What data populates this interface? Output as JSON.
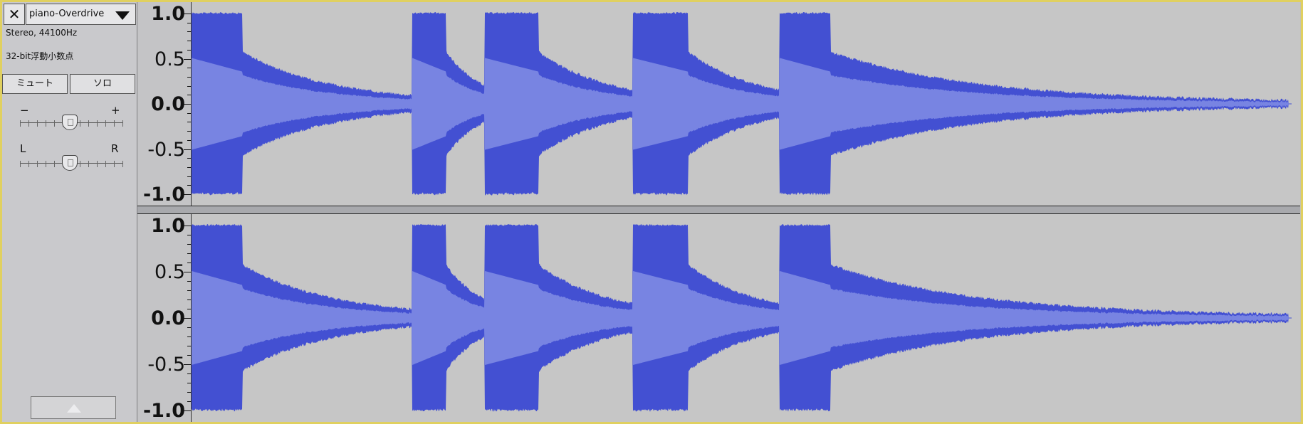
{
  "track": {
    "name": "piano-Overdrive",
    "format": "Stereo, 44100Hz",
    "bit_depth": "32-bit浮動小数点",
    "mute_label": "ミュート",
    "solo_label": "ソロ",
    "gain_minus": "−",
    "gain_plus": "+",
    "pan_left": "L",
    "pan_right": "R"
  },
  "ruler_labels": [
    "1.0",
    "0.5",
    "0.0",
    "-0.5",
    "-1.0"
  ],
  "colors": {
    "wave_peak": "#4350d2",
    "wave_rms": "#7884e2",
    "background": "#c6c6c6",
    "frame": "#e0d060"
  },
  "icons": {
    "close": "close-icon",
    "menu": "dropdown-arrow-icon",
    "collapse": "collapse-arrow-icon"
  }
}
